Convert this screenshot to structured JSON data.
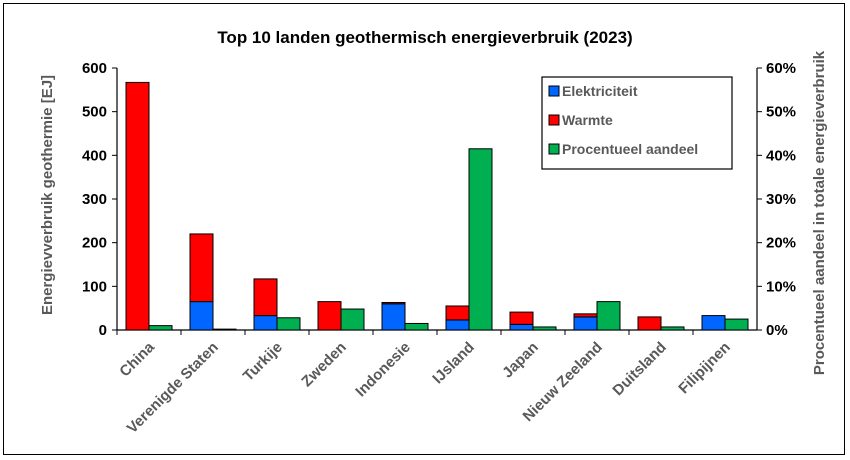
{
  "chart_data": {
    "type": "bar",
    "title": "Top 10 landen geothermisch energieverbruik (2023)",
    "ylabel": "Energievverbruik geothermie [EJ]",
    "y2label": "Procentueel aandeel in totale energieverbruik",
    "ylim": [
      0,
      600
    ],
    "y2lim": [
      0,
      0.6
    ],
    "yticks": [
      "0",
      "100",
      "200",
      "300",
      "400",
      "500",
      "600"
    ],
    "y2ticks": [
      "0%",
      "10%",
      "20%",
      "30%",
      "40%",
      "50%",
      "60%"
    ],
    "categories": [
      "China",
      "Verenigde Staten",
      "Turkije",
      "Zweden",
      "Indonesie",
      "IJsland",
      "Japan",
      "Nieuw Zeeland",
      "Duitsland",
      "Filipijnen"
    ],
    "series": [
      {
        "name": "Elektriciteit",
        "axis": "left",
        "stack": "energy",
        "color": "#0066FF",
        "values": [
          0,
          65,
          33,
          0,
          60,
          23,
          13,
          30,
          0,
          33
        ]
      },
      {
        "name": "Warmte",
        "axis": "left",
        "stack": "energy",
        "color": "#FF0000",
        "values": [
          567,
          155,
          84,
          65,
          3,
          32,
          28,
          7,
          30,
          0
        ]
      },
      {
        "name": "Procentueel aandeel",
        "axis": "right",
        "color": "#00B050",
        "values": [
          0.01,
          0.002,
          0.028,
          0.048,
          0.015,
          0.415,
          0.007,
          0.065,
          0.007,
          0.025
        ]
      }
    ],
    "legend_position": "top-right",
    "grid": false
  }
}
